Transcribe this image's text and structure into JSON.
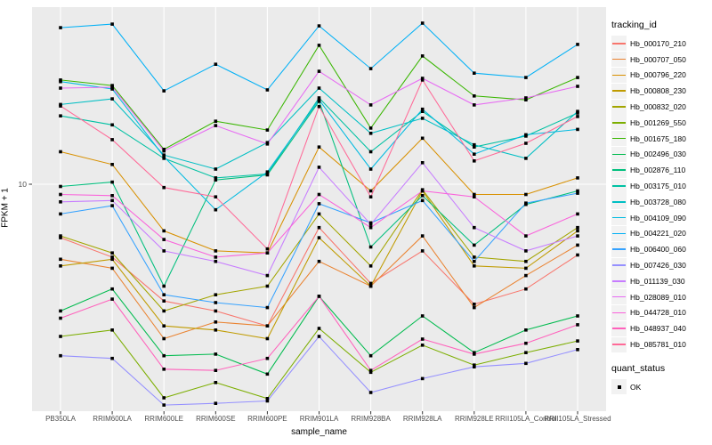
{
  "figure": {
    "panel_background": "#EBEBEB",
    "grid_color": "#FFFFFF",
    "point_color": "#000000",
    "axis_text_color": "#4D4D4D",
    "y_axis": {
      "tick_label": "10",
      "scale": "log10"
    }
  },
  "legend": {
    "tracking_title": "tracking_id",
    "quant_title": "quant_status",
    "quant_items": [
      {
        "label": "OK",
        "symbol": "black-square"
      }
    ]
  },
  "chart_data": {
    "type": "line",
    "title": "",
    "xlabel": "sample_name",
    "ylabel": "FPKM + 1",
    "yscale": "log10",
    "y_ticks": [
      10
    ],
    "grid": true,
    "legend_position": "right",
    "point_shape": "filled-square",
    "x": [
      "PB350LA",
      "RRIM600LA",
      "RRIM600LE",
      "RRIM600SE",
      "RRIM600PE",
      "RRIM901LA",
      "RRIM928BA",
      "RRIM928LA",
      "RRIM928LE",
      "RRII105LA_Control",
      "RRII105LA_Stressed"
    ],
    "series": [
      {
        "name": "Hb_000170_210",
        "color": "#F8766D",
        "values": [
          6.1,
          5.1,
          3.4,
          3.1,
          2.7,
          6.7,
          4.0,
          5.4,
          3.3,
          3.8,
          5.2
        ]
      },
      {
        "name": "Hb_000707_050",
        "color": "#EA8331",
        "values": [
          5.0,
          4.6,
          2.4,
          2.8,
          2.7,
          4.9,
          3.9,
          6.2,
          3.2,
          4.3,
          5.7
        ]
      },
      {
        "name": "Hb_000796_220",
        "color": "#D89000",
        "values": [
          13.5,
          12.0,
          6.5,
          5.4,
          5.3,
          14.1,
          9.4,
          15.3,
          9.1,
          9.1,
          10.6
        ]
      },
      {
        "name": "Hb_000808_230",
        "color": "#C09B00",
        "values": [
          4.7,
          5.0,
          2.7,
          2.6,
          2.4,
          6.1,
          3.9,
          9.4,
          4.7,
          4.6,
          6.5
        ]
      },
      {
        "name": "Hb_000832_020",
        "color": "#A3A500",
        "values": [
          6.2,
          5.3,
          3.1,
          3.6,
          3.9,
          7.6,
          4.7,
          9.5,
          5.1,
          4.9,
          6.7
        ]
      },
      {
        "name": "Hb_001269_550",
        "color": "#7CAE00",
        "values": [
          2.45,
          2.6,
          1.39,
          1.6,
          1.38,
          2.64,
          1.76,
          2.26,
          1.88,
          2.11,
          2.35
        ]
      },
      {
        "name": "Hb_001675_180",
        "color": "#39B600",
        "values": [
          26.2,
          24.9,
          13.8,
          17.9,
          16.5,
          36.1,
          16.8,
          32.7,
          22.6,
          21.8,
          26.8
        ]
      },
      {
        "name": "Hb_002496_030",
        "color": "#00BB4E",
        "values": [
          3.1,
          3.8,
          2.05,
          2.08,
          1.73,
          3.55,
          2.05,
          2.96,
          2.11,
          2.6,
          2.96
        ]
      },
      {
        "name": "Hb_002876_110",
        "color": "#00BF7D",
        "values": [
          9.8,
          10.2,
          3.9,
          10.4,
          10.9,
          21.5,
          5.6,
          9.0,
          5.7,
          8.3,
          9.4
        ]
      },
      {
        "name": "Hb_003175_010",
        "color": "#00C1A3",
        "values": [
          18.8,
          17.3,
          12.7,
          10.6,
          11.0,
          22.2,
          13.5,
          19.6,
          14.1,
          15.6,
          19.3
        ]
      },
      {
        "name": "Hb_003728_080",
        "color": "#00BFC4",
        "values": [
          20.9,
          22.0,
          13.1,
          11.5,
          14.7,
          24.3,
          16.0,
          18.4,
          14.4,
          12.7,
          19.6
        ]
      },
      {
        "name": "Hb_004109_090",
        "color": "#00BAE0",
        "values": [
          25.8,
          24.1,
          12.9,
          7.9,
          11.2,
          21.8,
          11.5,
          20.0,
          13.2,
          15.8,
          16.6
        ]
      },
      {
        "name": "Hb_004221_020",
        "color": "#00B0F6",
        "values": [
          42.5,
          43.9,
          23.7,
          30.3,
          23.9,
          43.2,
          29.1,
          44.3,
          27.9,
          26.8,
          36.4
        ]
      },
      {
        "name": "Hb_006400_060",
        "color": "#35A2FF",
        "values": [
          7.6,
          8.2,
          3.6,
          3.35,
          3.2,
          8.35,
          7.0,
          8.6,
          4.9,
          8.4,
          9.2
        ]
      },
      {
        "name": "Hb_007426_030",
        "color": "#9590FF",
        "values": [
          2.05,
          2.0,
          1.3,
          1.32,
          1.35,
          2.45,
          1.46,
          1.66,
          1.85,
          1.91,
          2.17
        ]
      },
      {
        "name": "Hb_011139_030",
        "color": "#C77CFF",
        "values": [
          8.5,
          8.6,
          5.4,
          4.9,
          4.3,
          11.7,
          6.9,
          12.2,
          6.7,
          5.4,
          6.2
        ]
      },
      {
        "name": "Hb_028089_010",
        "color": "#E76BF3",
        "values": [
          24.3,
          24.5,
          13.6,
          17.2,
          14.5,
          28.4,
          20.8,
          26.6,
          20.8,
          22.2,
          24.7
        ]
      },
      {
        "name": "Hb_044728_010",
        "color": "#FA62DB",
        "values": [
          9.1,
          9.0,
          6.0,
          5.1,
          5.3,
          9.1,
          6.7,
          9.4,
          8.9,
          6.2,
          7.6
        ]
      },
      {
        "name": "Hb_048937_040",
        "color": "#FF62BC",
        "values": [
          2.9,
          3.46,
          1.81,
          1.79,
          2.0,
          3.55,
          1.79,
          2.39,
          2.08,
          2.3,
          2.73
        ]
      },
      {
        "name": "Hb_085781_010",
        "color": "#FF6A98",
        "values": [
          20.6,
          15.1,
          9.7,
          8.9,
          5.5,
          20.5,
          8.9,
          26.2,
          12.4,
          14.6,
          18.7
        ]
      }
    ]
  }
}
